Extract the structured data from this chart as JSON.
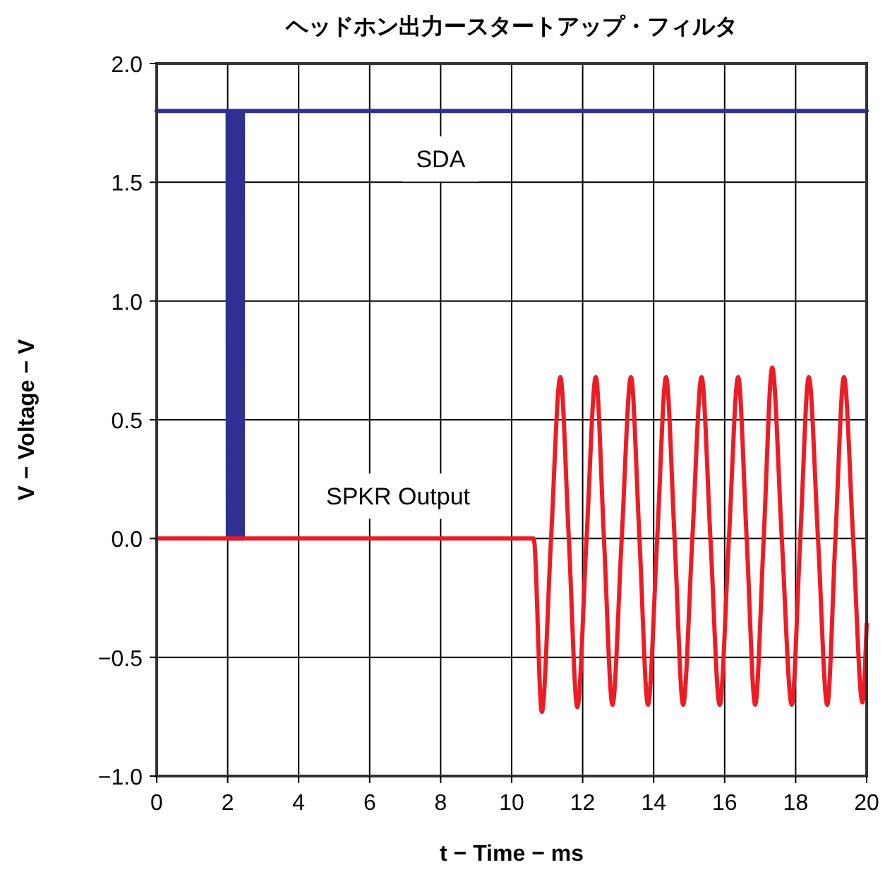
{
  "chart_data": {
    "type": "line",
    "title": "ヘッドホン出力ースタートアップ・フィルタ",
    "xlabel": "t − Time − ms",
    "ylabel": "V − Voltage − V",
    "xlim": [
      0,
      20
    ],
    "xticks": [
      0,
      2,
      4,
      6,
      8,
      10,
      12,
      14,
      16,
      18,
      20
    ],
    "ylim": [
      -1,
      2
    ],
    "yticks": [
      {
        "value": -1,
        "label": "−1.0"
      },
      {
        "value": -0.5,
        "label": "−0.5"
      },
      {
        "value": 0,
        "label": "0.0"
      },
      {
        "value": 0.5,
        "label": "0.5"
      },
      {
        "value": 1,
        "label": "1.0"
      },
      {
        "value": 1.5,
        "label": "1.5"
      },
      {
        "value": 2,
        "label": "2.0"
      }
    ],
    "grid": true,
    "marker": "none",
    "line_style": "solid",
    "series": [
      {
        "name": "SDA",
        "color": "#2e3192",
        "x": [
          0,
          2,
          2.005,
          2.025,
          2.03,
          2.05,
          2.055,
          2.075,
          2.08,
          2.1,
          2.105,
          2.125,
          2.13,
          2.15,
          2.155,
          2.175,
          2.18,
          2.2,
          2.205,
          2.225,
          2.23,
          2.25,
          2.255,
          2.275,
          2.28,
          2.3,
          2.305,
          2.325,
          2.33,
          2.35,
          2.355,
          2.375,
          2.38,
          2.4,
          2.405,
          2.425,
          2.43,
          2.45,
          20
        ],
        "values": [
          1.8,
          1.8,
          0,
          0,
          1.8,
          1.8,
          0,
          0,
          1.8,
          1.8,
          0,
          0,
          1.8,
          1.8,
          0,
          0,
          1.8,
          1.8,
          0,
          0,
          1.8,
          1.8,
          0,
          0,
          1.8,
          1.8,
          0,
          0,
          1.8,
          1.8,
          0,
          0,
          1.8,
          1.8,
          0,
          0,
          1.8,
          1.8,
          1.8
        ]
      },
      {
        "name": "SPKR Output",
        "color": "#ed1c24",
        "x": [
          0,
          10.62,
          10.85,
          11.11,
          11.37,
          11.61,
          11.85,
          12.11,
          12.37,
          12.6,
          12.84,
          13.1,
          13.36,
          13.6,
          13.84,
          14.1,
          14.35,
          14.59,
          14.83,
          15.09,
          15.35,
          15.6,
          15.86,
          16.12,
          16.38,
          16.62,
          16.86,
          17.1,
          17.34,
          17.61,
          17.89,
          18.13,
          18.37,
          18.63,
          18.89,
          19.12,
          19.36,
          19.62,
          19.88,
          20
        ],
        "values": [
          0,
          0,
          -0.73,
          0,
          0.68,
          0,
          -0.71,
          0,
          0.68,
          0,
          -0.7,
          0,
          0.68,
          0,
          -0.7,
          0,
          0.68,
          0,
          -0.7,
          0,
          0.68,
          0,
          -0.7,
          0,
          0.68,
          0,
          -0.7,
          0,
          0.72,
          0,
          -0.7,
          0,
          0.68,
          0,
          -0.7,
          0,
          0.68,
          0,
          -0.69,
          -0.36
        ]
      }
    ]
  }
}
